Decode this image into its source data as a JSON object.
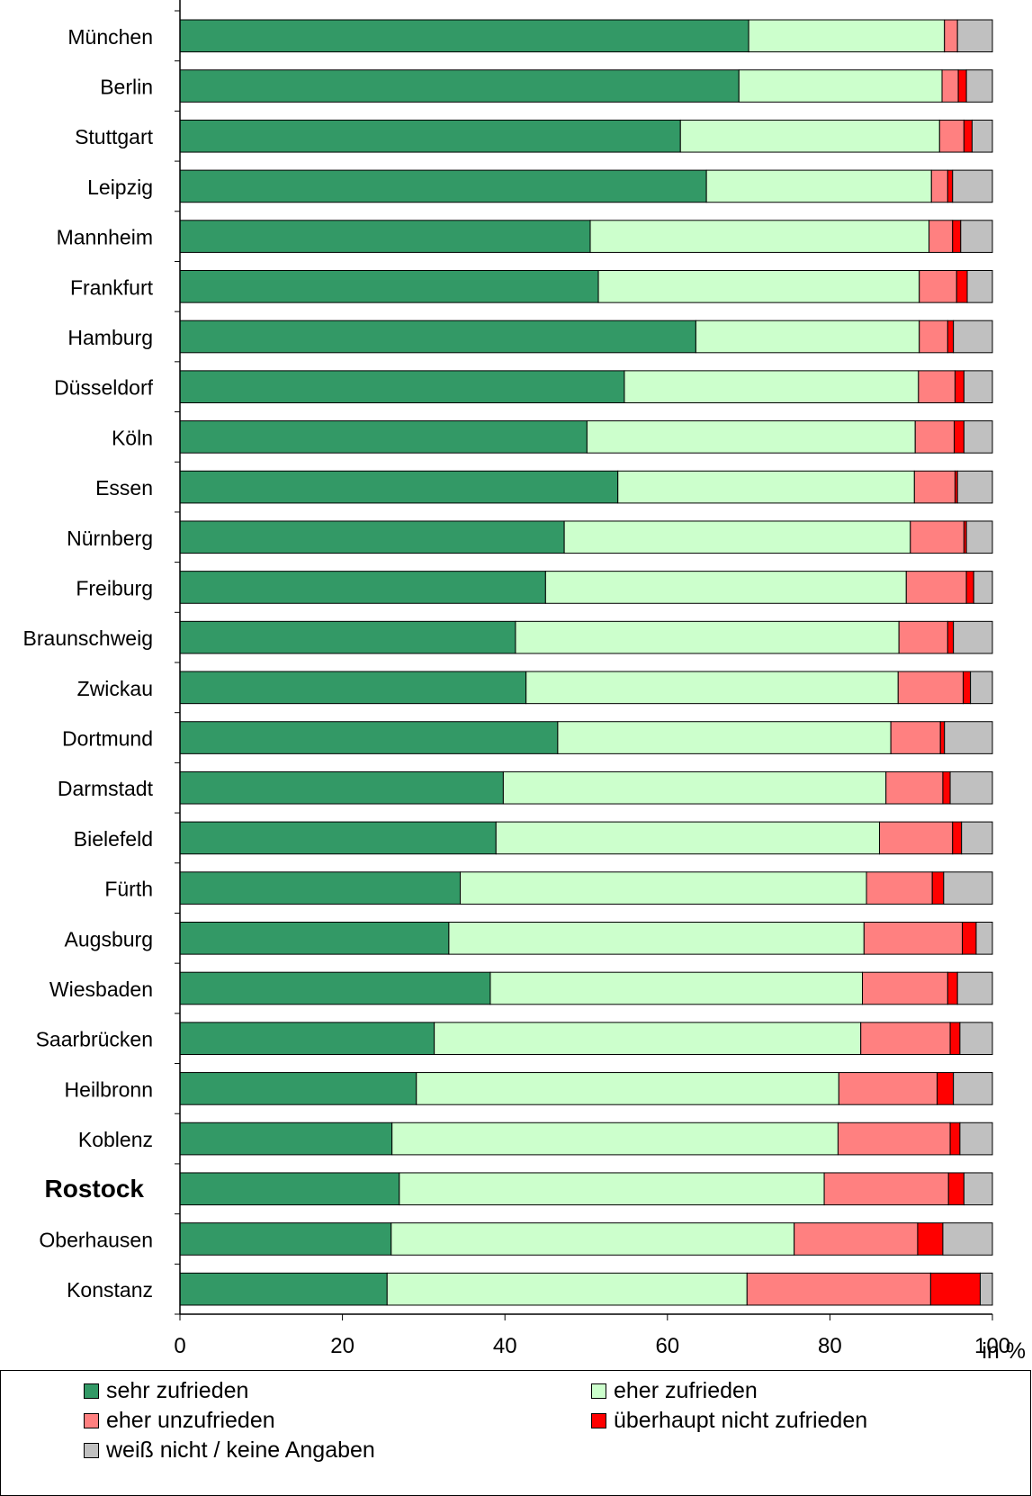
{
  "chart_data": {
    "type": "bar",
    "orientation": "horizontal",
    "stacked": true,
    "title": "",
    "xlabel": "in %",
    "ylabel": "",
    "xlim": [
      0,
      100
    ],
    "x_ticks": [
      "0",
      "20",
      "40",
      "60",
      "80",
      "100"
    ],
    "grid": false,
    "legend_position": "bottom",
    "highlighted_category": "Rostock",
    "categories": [
      "München",
      "Berlin",
      "Stuttgart",
      "Leipzig",
      "Mannheim",
      "Frankfurt",
      "Hamburg",
      "Düsseldorf",
      "Köln",
      "Essen",
      "Nürnberg",
      "Freiburg",
      "Braunschweig",
      "Zwickau",
      "Dortmund",
      "Darmstadt",
      "Bielefeld",
      "Fürth",
      "Augsburg",
      "Wiesbaden",
      "Saarbrücken",
      "Heilbronn",
      "Koblenz",
      "Rostock",
      "Oberhausen",
      "Konstanz"
    ],
    "series": [
      {
        "name": "sehr zufrieden",
        "color": "#339966",
        "values": [
          70.0,
          68.8,
          61.6,
          64.8,
          50.5,
          51.5,
          63.5,
          54.7,
          50.1,
          53.9,
          47.3,
          45.0,
          41.3,
          42.6,
          46.5,
          39.8,
          38.9,
          34.5,
          33.1,
          38.2,
          31.3,
          29.1,
          26.1,
          27.0,
          26.0,
          25.5
        ]
      },
      {
        "name": "eher zufrieden",
        "color": "#CCFFCC",
        "values": [
          24.1,
          25.0,
          31.9,
          27.7,
          41.7,
          39.5,
          27.5,
          36.2,
          40.4,
          36.5,
          42.6,
          44.4,
          47.2,
          45.8,
          41.0,
          47.1,
          47.2,
          50.0,
          51.1,
          45.8,
          52.5,
          52.0,
          54.9,
          52.3,
          49.6,
          44.3
        ]
      },
      {
        "name": "eher unzufrieden",
        "color": "#FF8080",
        "values": [
          1.6,
          2.0,
          3.0,
          2.0,
          2.9,
          4.6,
          3.5,
          4.5,
          4.8,
          5.0,
          6.6,
          7.4,
          6.0,
          8.0,
          6.1,
          7.0,
          9.0,
          8.1,
          12.1,
          10.5,
          11.0,
          12.1,
          13.8,
          15.3,
          15.2,
          22.6
        ]
      },
      {
        "name": "überhaupt nicht zufrieden",
        "color": "#FF0000",
        "values": [
          0.0,
          1.0,
          1.0,
          0.6,
          1.0,
          1.3,
          0.7,
          1.1,
          1.2,
          0.3,
          0.3,
          0.9,
          0.7,
          0.9,
          0.5,
          0.9,
          1.1,
          1.4,
          1.7,
          1.2,
          1.2,
          2.0,
          1.2,
          1.9,
          3.1,
          6.1
        ]
      },
      {
        "name": "weiß nicht / keine Angaben",
        "color": "#C0C0C0",
        "values": [
          4.3,
          3.2,
          2.5,
          4.9,
          3.9,
          3.1,
          4.8,
          3.5,
          3.5,
          4.3,
          3.2,
          2.3,
          4.8,
          2.7,
          5.9,
          5.2,
          3.8,
          6.0,
          2.0,
          4.3,
          4.0,
          4.8,
          4.0,
          3.5,
          6.1,
          1.5
        ]
      }
    ]
  }
}
